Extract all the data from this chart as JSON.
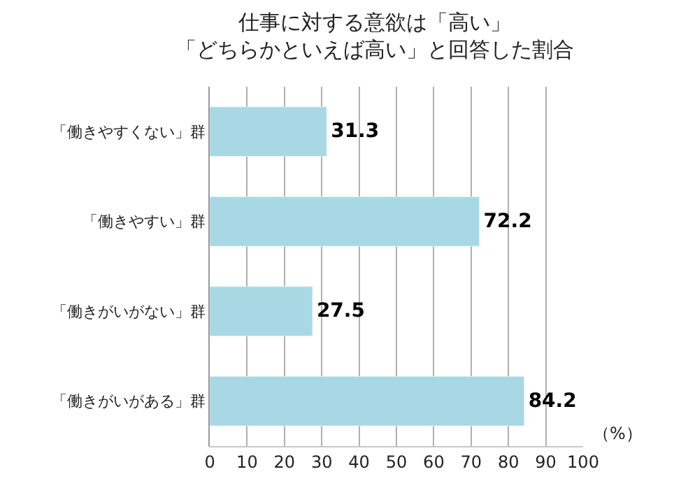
{
  "chart_data": {
    "type": "bar",
    "orientation": "horizontal",
    "title": "仕事に対する意欲は「高い」",
    "subtitle": "「どちらかといえば高い」と回答した割合",
    "categories": [
      "「働きやすくない」群",
      "「働きやすい」群",
      "「働きがいがない」群",
      "「働きがいがある」群"
    ],
    "values": [
      31.3,
      72.2,
      27.5,
      84.2
    ],
    "color": "#a8d8e4",
    "xlim": [
      0,
      100
    ],
    "xticks": [
      0,
      10,
      20,
      30,
      40,
      50,
      60,
      70,
      80,
      90,
      100
    ],
    "grid": "x",
    "data_labels": true,
    "annotations": [
      "（%）"
    ],
    "legend": false
  }
}
